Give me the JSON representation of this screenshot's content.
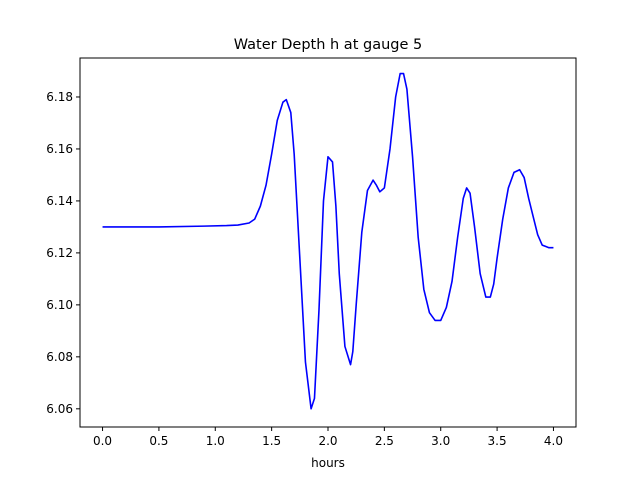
{
  "chart_data": {
    "type": "line",
    "title": "Water Depth h at gauge 5",
    "xlabel": "hours",
    "ylabel": "",
    "xlim": [
      -0.2,
      4.2
    ],
    "ylim": [
      6.053,
      6.195
    ],
    "xticks": [
      0.0,
      0.5,
      1.0,
      1.5,
      2.0,
      2.5,
      3.0,
      3.5,
      4.0
    ],
    "xtick_labels": [
      "0.0",
      "0.5",
      "1.0",
      "1.5",
      "2.0",
      "2.5",
      "3.0",
      "3.5",
      "4.0"
    ],
    "yticks": [
      6.06,
      6.08,
      6.1,
      6.12,
      6.14,
      6.16,
      6.18
    ],
    "ytick_labels": [
      "6.06",
      "6.08",
      "6.10",
      "6.12",
      "6.14",
      "6.16",
      "6.18"
    ],
    "grid": false,
    "series": [
      {
        "color": "#0000ff",
        "x": [
          0.0,
          0.5,
          0.9,
          1.1,
          1.2,
          1.3,
          1.35,
          1.4,
          1.45,
          1.5,
          1.55,
          1.6,
          1.63,
          1.67,
          1.7,
          1.75,
          1.8,
          1.85,
          1.88,
          1.92,
          1.96,
          2.0,
          2.04,
          2.07,
          2.1,
          2.15,
          2.2,
          2.22,
          2.25,
          2.3,
          2.35,
          2.4,
          2.43,
          2.46,
          2.5,
          2.55,
          2.6,
          2.64,
          2.67,
          2.7,
          2.75,
          2.8,
          2.85,
          2.9,
          2.95,
          3.0,
          3.05,
          3.1,
          3.15,
          3.2,
          3.23,
          3.26,
          3.3,
          3.35,
          3.4,
          3.44,
          3.47,
          3.5,
          3.55,
          3.6,
          3.65,
          3.7,
          3.74,
          3.78,
          3.82,
          3.86,
          3.9,
          3.93,
          3.96,
          4.0
        ],
        "y": [
          6.13,
          6.13,
          6.1303,
          6.1305,
          6.1307,
          6.1315,
          6.133,
          6.138,
          6.146,
          6.158,
          6.171,
          6.178,
          6.179,
          6.174,
          6.158,
          6.118,
          6.078,
          6.06,
          6.064,
          6.098,
          6.14,
          6.157,
          6.155,
          6.138,
          6.112,
          6.084,
          6.077,
          6.082,
          6.1,
          6.128,
          6.144,
          6.148,
          6.146,
          6.1435,
          6.145,
          6.16,
          6.18,
          6.189,
          6.189,
          6.183,
          6.157,
          6.126,
          6.106,
          6.097,
          6.094,
          6.094,
          6.099,
          6.109,
          6.126,
          6.141,
          6.145,
          6.143,
          6.13,
          6.112,
          6.103,
          6.103,
          6.108,
          6.118,
          6.133,
          6.145,
          6.151,
          6.152,
          6.149,
          6.141,
          6.134,
          6.127,
          6.123,
          6.1225,
          6.122,
          6.122
        ]
      }
    ]
  }
}
